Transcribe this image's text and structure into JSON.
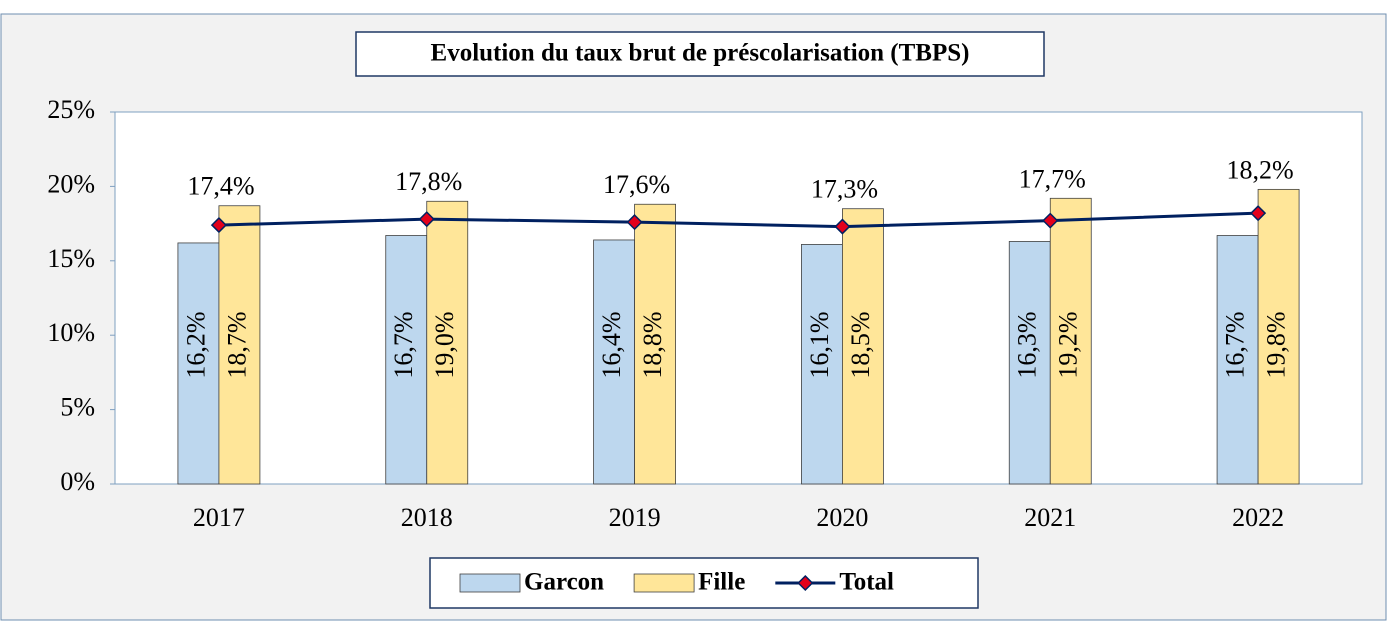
{
  "chart_data": {
    "type": "combo",
    "title": "Evolution du taux brut de préscolarisation (TBPS)",
    "categories": [
      "2017",
      "2018",
      "2019",
      "2020",
      "2021",
      "2022"
    ],
    "series": [
      {
        "name": "Garcon",
        "type": "bar",
        "color": "#bdd7ee",
        "values": [
          16.2,
          16.7,
          16.4,
          16.1,
          16.3,
          16.7
        ],
        "value_labels": [
          "16,2%",
          "16,7%",
          "16,4%",
          "16,1%",
          "16,3%",
          "16,7%"
        ]
      },
      {
        "name": "Fille",
        "type": "bar",
        "color": "#ffe699",
        "values": [
          18.7,
          19.0,
          18.8,
          18.5,
          19.2,
          19.8
        ],
        "value_labels": [
          "18,7%",
          "19,0%",
          "18,8%",
          "18,5%",
          "19,2%",
          "19,8%"
        ]
      },
      {
        "name": "Total",
        "type": "line",
        "color": "#002060",
        "marker_color": "#e3001b",
        "values": [
          17.4,
          17.8,
          17.6,
          17.3,
          17.7,
          18.2
        ],
        "value_labels": [
          "17,4%",
          "17,8%",
          "17,6%",
          "17,3%",
          "17,7%",
          "18,2%"
        ]
      }
    ],
    "ylim": [
      0,
      25
    ],
    "yticks": [
      {
        "value": 0,
        "label": "0%"
      },
      {
        "value": 5,
        "label": "5%"
      },
      {
        "value": 10,
        "label": "10%"
      },
      {
        "value": 15,
        "label": "15%"
      },
      {
        "value": 20,
        "label": "20%"
      },
      {
        "value": 25,
        "label": "25%"
      }
    ],
    "grid": false,
    "legend": "bottom"
  }
}
